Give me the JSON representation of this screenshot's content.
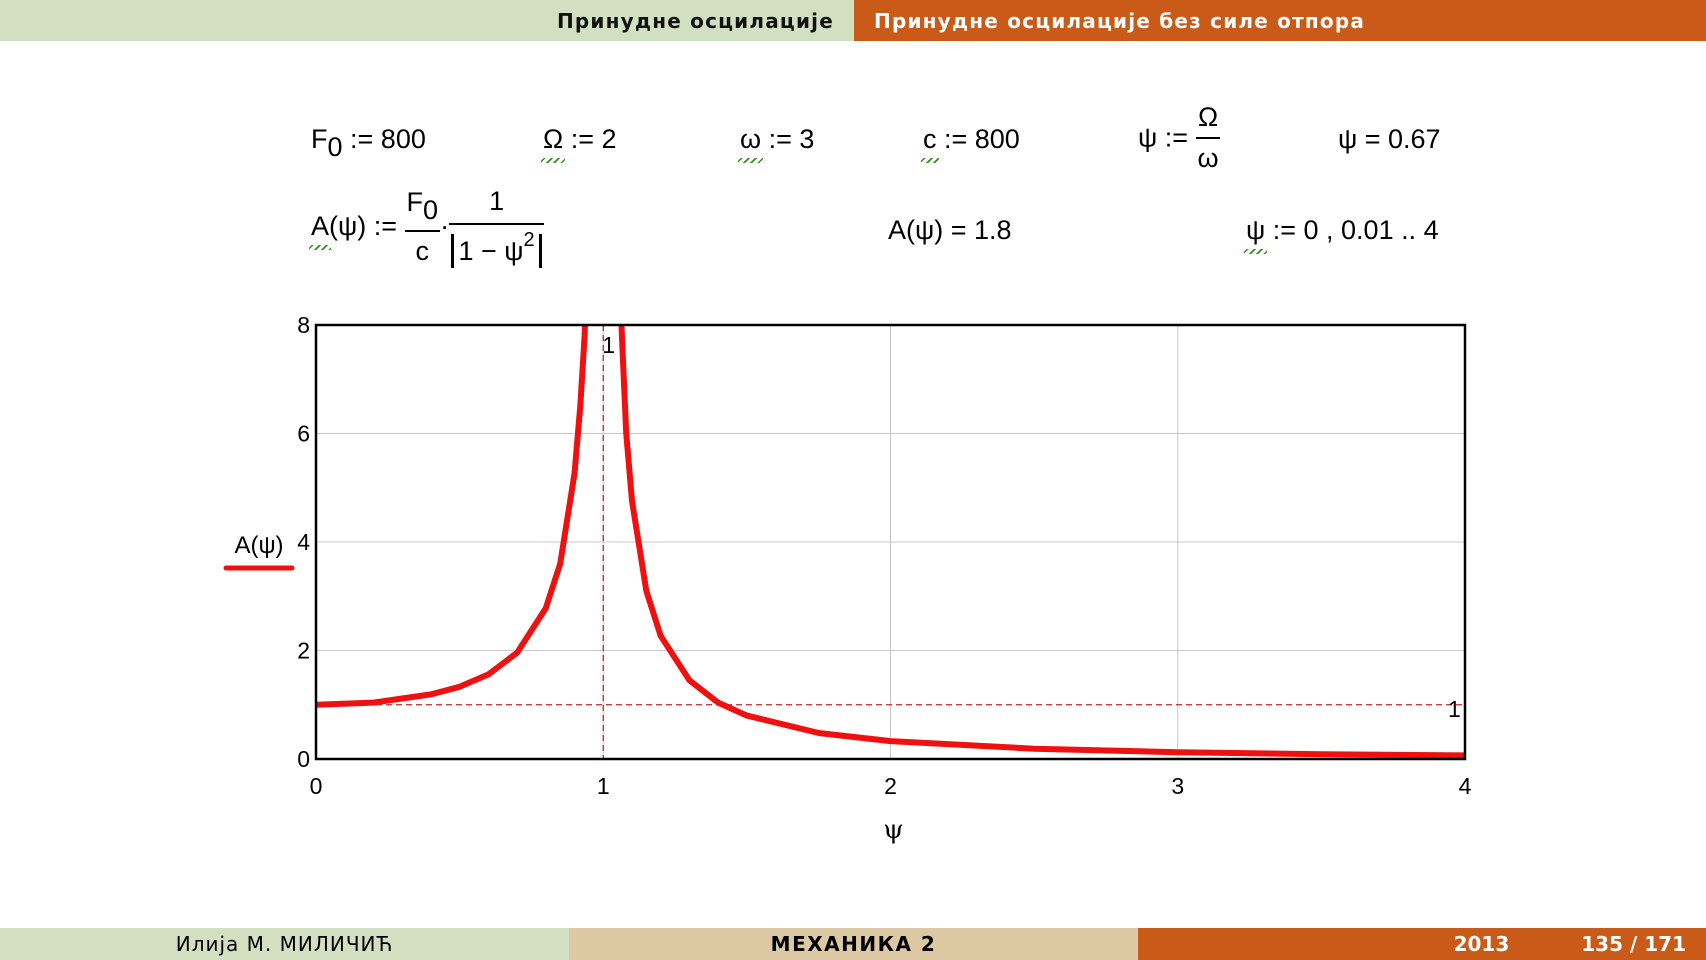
{
  "header": {
    "section": "Принудне осцилације",
    "subsection": "Принудне осцилације без силе отпора"
  },
  "worksheet": {
    "row1": {
      "f0_name": "F",
      "f0_sub": "0",
      "f0_rest": " := 800",
      "omega_big_name": "Ω",
      "omega_big_rest": " := 2",
      "omega_name": "ω",
      "omega_rest": " := 3",
      "c_name": "c",
      "c_rest": " := 800",
      "psi_def_lhs": "ψ := ",
      "psi_def_num": "Ω",
      "psi_def_den": "ω",
      "psi_result": "ψ = 0.67"
    },
    "row2": {
      "a_name": "A",
      "a_rest": "(ψ) := ",
      "frac1_num": "F",
      "frac1_num_sub": "0",
      "frac1_den": "c",
      "dot": "·",
      "frac2_num": "1",
      "frac2_den": "1 − ψ",
      "frac2_den_sup": "2",
      "a_result": "A(ψ) = 1.8",
      "range_name": "ψ",
      "range_rest": " := 0 , 0.01 .. 4"
    }
  },
  "chart_data": {
    "type": "line",
    "xlim": [
      0,
      4
    ],
    "ylim": [
      0,
      8
    ],
    "xticks": [
      0,
      1,
      2,
      3,
      4
    ],
    "yticks": [
      0,
      2,
      4,
      6,
      8
    ],
    "xticklabels": [
      "0",
      "1",
      "2",
      "3",
      "4"
    ],
    "yticklabels": [
      "0",
      "2",
      "4",
      "6",
      "8"
    ],
    "xlabel": "ψ",
    "ylabel": "A(ψ)",
    "grid": true,
    "series": [
      {
        "name": "A(ψ)",
        "color": "#ee1111",
        "x": [
          0,
          0.2,
          0.4,
          0.5,
          0.6,
          0.7,
          0.8,
          0.85,
          0.9,
          0.92,
          1.08,
          1.1,
          1.15,
          1.2,
          1.3,
          1.4,
          1.5,
          1.75,
          2,
          2.5,
          3,
          3.5,
          4
        ],
        "y": [
          1,
          1.04,
          1.19,
          1.33,
          1.56,
          1.96,
          2.78,
          3.6,
          5.26,
          6.51,
          6.01,
          4.76,
          3.1,
          2.27,
          1.45,
          1.04,
          0.8,
          0.48,
          0.33,
          0.19,
          0.125,
          0.089,
          0.067
        ]
      }
    ],
    "markers": {
      "vertical_x": 1,
      "vertical_label": "1",
      "horizontal_y": 1,
      "horizontal_label": "1",
      "color": "#cc2222"
    }
  },
  "footer": {
    "author": "Илија М. МИЛИЧИЋ",
    "course": "МЕХАНИКА 2",
    "year": "2013",
    "page": "135 / 171"
  }
}
